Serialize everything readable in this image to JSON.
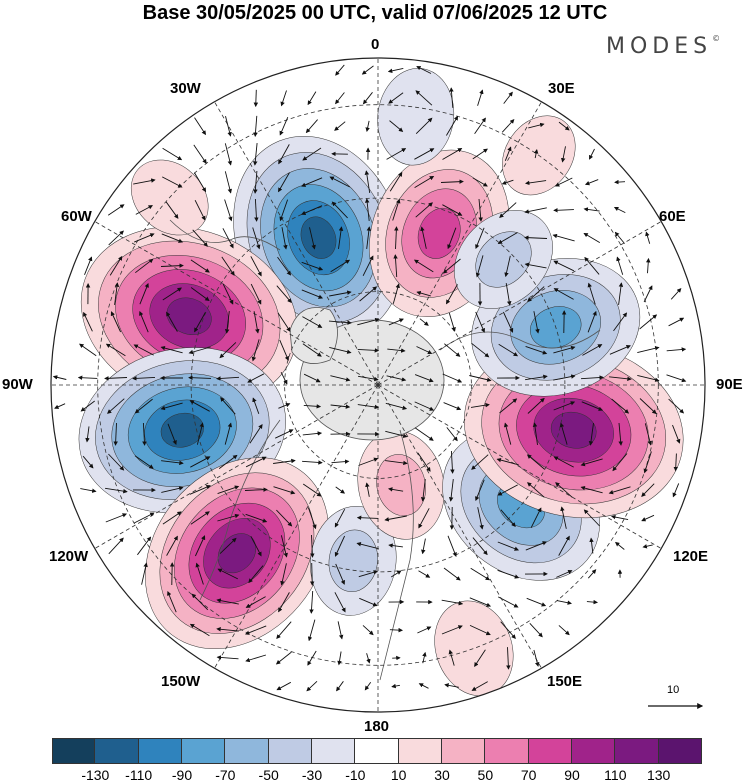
{
  "title": "Base 30/05/2025 00 UTC, valid 07/06/2025 12 UTC",
  "logo": "MODES",
  "logo_mark": "©",
  "longitude_labels": {
    "top": "0",
    "bottom": "180",
    "left": "90W",
    "right": "90E",
    "upper_left_30": "30W",
    "upper_left_60": "60W",
    "lower_left_120": "120W",
    "lower_left_150": "150W",
    "upper_right_30": "30E",
    "upper_right_60": "60E",
    "lower_right_120": "120E",
    "lower_right_150": "150E"
  },
  "vector_scale_label": "10",
  "colorbar": {
    "colors": [
      "#143f5c",
      "#1f5f8e",
      "#2f83bd",
      "#5aa3d2",
      "#8fb7dc",
      "#bfcbe4",
      "#e0e2ef",
      "#ffffff",
      "#f9dbdd",
      "#f5b2c4",
      "#ec7fb0",
      "#d3439a",
      "#a0238a",
      "#7b1a80",
      "#5b146e"
    ],
    "tick_labels": [
      "-130",
      "-110",
      "-90",
      "-70",
      "-50",
      "-30",
      "-10",
      "10",
      "30",
      "50",
      "70",
      "90",
      "110",
      "130"
    ]
  },
  "anomaly_centers": [
    {
      "value": -120,
      "lon": -22,
      "lat": 56
    },
    {
      "value": 90,
      "lon": 22,
      "lat": 55
    },
    {
      "value": 130,
      "lon": -70,
      "lat": 47
    },
    {
      "value": -120,
      "lon": -103,
      "lat": 47
    },
    {
      "value": 120,
      "lon": -140,
      "lat": 43
    },
    {
      "value": -40,
      "lon": -172,
      "lat": 52
    },
    {
      "value": 40,
      "lon": 167,
      "lat": 68
    },
    {
      "value": -90,
      "lon": 130,
      "lat": 50
    },
    {
      "value": 130,
      "lon": 103,
      "lat": 47
    },
    {
      "value": -90,
      "lon": 72,
      "lat": 50
    },
    {
      "value": 20,
      "lon": 35,
      "lat": 30
    },
    {
      "value": 30,
      "lon": 160,
      "lat": 30
    },
    {
      "value": -30,
      "lon": 8,
      "lat": 32
    },
    {
      "value": 20,
      "lon": -48,
      "lat": 30
    },
    {
      "value": -40,
      "lon": 45,
      "lat": 52
    }
  ]
}
